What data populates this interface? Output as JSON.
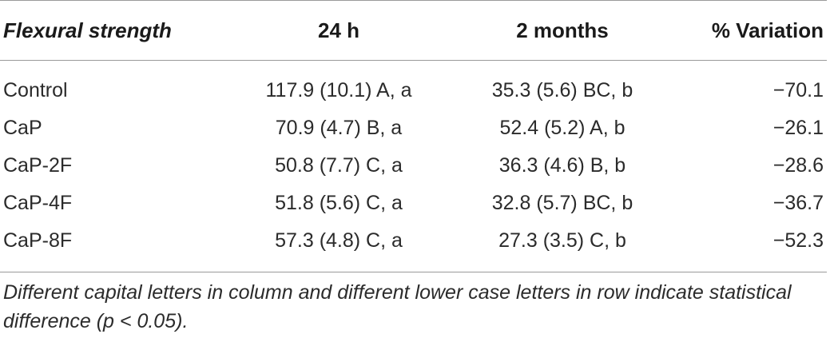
{
  "table": {
    "headers": [
      "Flexural strength",
      "24 h",
      "2 months",
      "% Variation"
    ],
    "rows": [
      [
        "Control",
        "117.9 (10.1) A, a",
        "35.3 (5.6) BC, b",
        "−70.1"
      ],
      [
        "CaP",
        "70.9 (4.7) B, a",
        "52.4 (5.2) A, b",
        "−26.1"
      ],
      [
        "CaP-2F",
        "50.8 (7.7) C, a",
        "36.3 (4.6) B, b",
        "−28.6"
      ],
      [
        "CaP-4F",
        "51.8 (5.6) C, a",
        "32.8 (5.7) BC, b",
        "−36.7"
      ],
      [
        "CaP-8F",
        "57.3 (4.8) C, a",
        "27.3 (3.5) C, b",
        "−52.3"
      ]
    ]
  },
  "footnote": "Different capital letters in column and different lower case letters in row indicate statistical difference (p < 0.05)."
}
